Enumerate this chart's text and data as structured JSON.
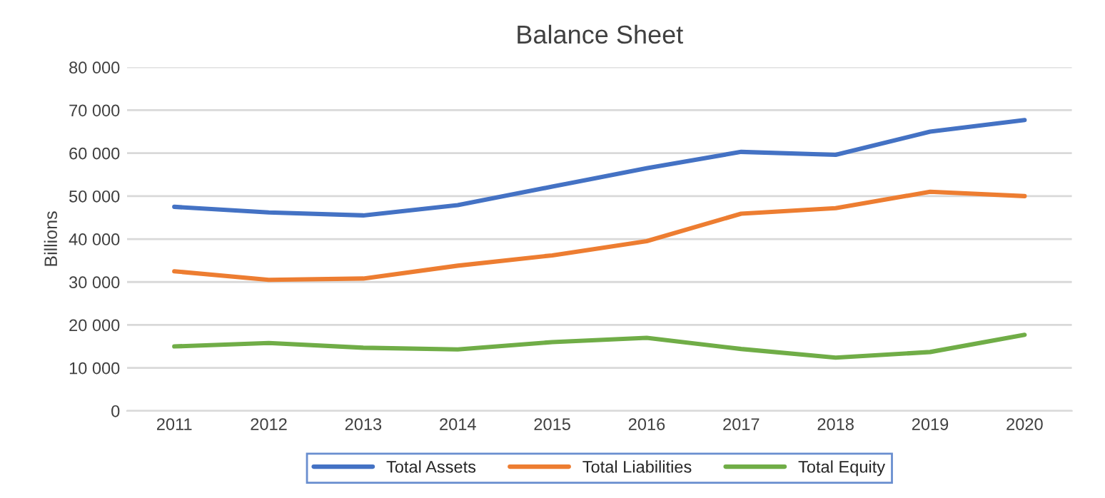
{
  "chart_data": {
    "type": "line",
    "title": "Balance Sheet",
    "ylabel": "Billions",
    "categories": [
      "2011",
      "2012",
      "2013",
      "2014",
      "2015",
      "2016",
      "2017",
      "2018",
      "2019",
      "2020"
    ],
    "series": [
      {
        "name": "Total Assets",
        "color": "#4472c4",
        "values": [
          47500,
          46200,
          45500,
          47900,
          52200,
          56500,
          60300,
          59600,
          65000,
          67700
        ]
      },
      {
        "name": "Total Liabilities",
        "color": "#ed7d31",
        "values": [
          32500,
          30500,
          30800,
          33800,
          36200,
          39500,
          45900,
          47200,
          51000,
          50000
        ]
      },
      {
        "name": "Total Equity",
        "color": "#70ad47",
        "values": [
          15000,
          15800,
          14700,
          14300,
          16000,
          17000,
          14400,
          12400,
          13700,
          17700
        ]
      }
    ],
    "ylim": [
      0,
      80000
    ],
    "yticks": [
      {
        "value": 0,
        "label": "0"
      },
      {
        "value": 10000,
        "label": "10 000"
      },
      {
        "value": 20000,
        "label": "20 000"
      },
      {
        "value": 30000,
        "label": "30 000"
      },
      {
        "value": 40000,
        "label": "40 000"
      },
      {
        "value": 50000,
        "label": "50 000"
      },
      {
        "value": 60000,
        "label": "60 000"
      },
      {
        "value": 70000,
        "label": "70 000"
      },
      {
        "value": 80000,
        "label": "80 000"
      }
    ],
    "grid": "y",
    "legend": "bottom",
    "marker": "none",
    "line_style": "solid"
  }
}
